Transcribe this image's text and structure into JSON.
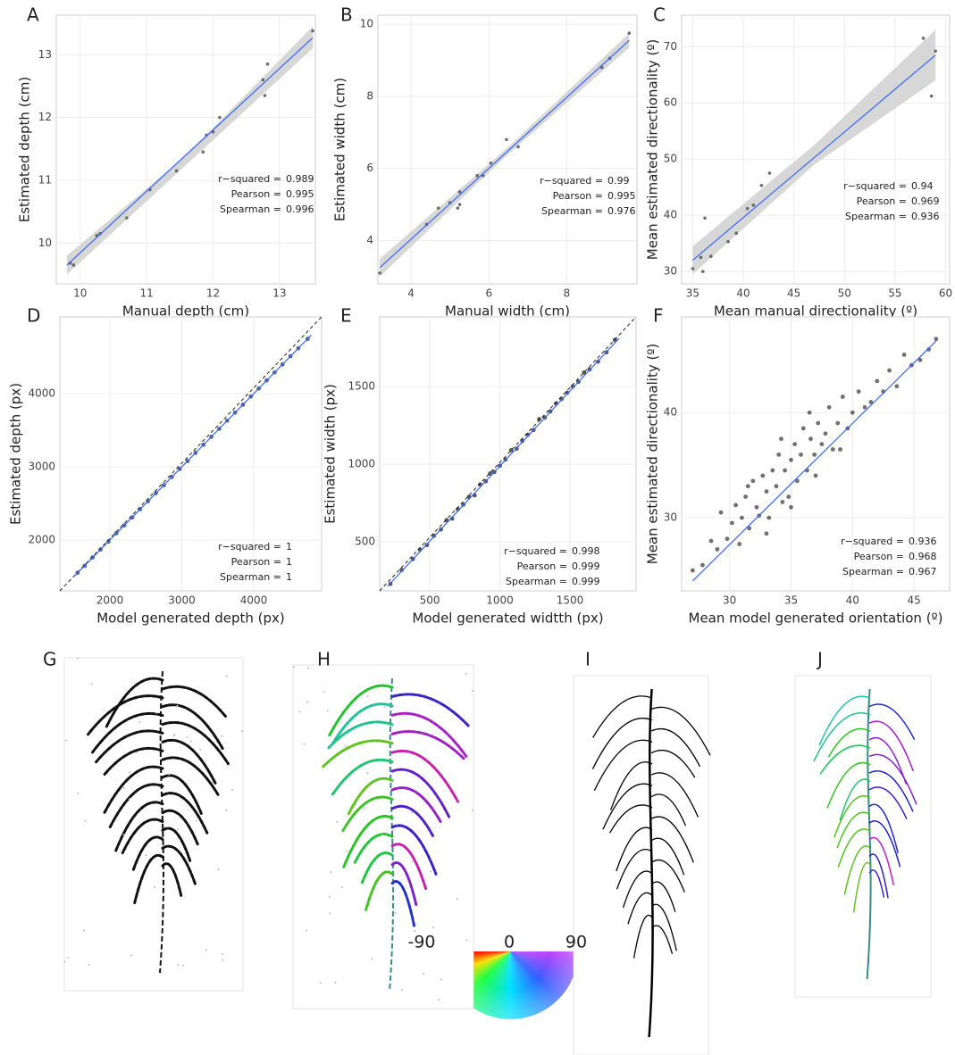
{
  "chart_data": [
    {
      "type": "scatter",
      "panel": "A",
      "x_label": "Manual depth (cm)",
      "y_label": "Estimated depth (cm)",
      "xlim": [
        9.64,
        13.54
      ],
      "ylim": [
        9.35,
        13.63
      ],
      "xticks": [
        10,
        11,
        12,
        13
      ],
      "yticks": [
        10,
        11,
        12,
        13
      ],
      "grid": true,
      "color": "#555555",
      "x": [
        9.85,
        9.9,
        10.25,
        10.3,
        10.7,
        11.05,
        11.45,
        11.85,
        11.9,
        12.0,
        12.1,
        12.75,
        12.78,
        12.82,
        13.5
      ],
      "values": [
        9.68,
        9.65,
        10.12,
        10.15,
        10.4,
        10.85,
        11.15,
        11.45,
        11.72,
        11.77,
        12.0,
        12.6,
        12.35,
        12.85,
        13.38
      ],
      "fit": {
        "color": "#3366ff",
        "x": [
          9.8,
          13.5
        ],
        "values": [
          9.65,
          13.27
        ]
      },
      "ci": {
        "x": [
          9.8,
          11.6,
          13.5
        ],
        "lower": [
          9.5,
          11.25,
          13.1
        ],
        "upper": [
          9.8,
          11.4,
          13.45
        ]
      },
      "stats": [
        {
          "label": "r−squared =",
          "value": 0.989
        },
        {
          "label": "Pearson =",
          "value": 0.995
        },
        {
          "label": "Spearman =",
          "value": 0.996
        }
      ]
    },
    {
      "type": "scatter",
      "panel": "B",
      "x_label": "Manual width (cm)",
      "y_label": "Estimated width (cm)",
      "xlim": [
        3.15,
        9.8
      ],
      "ylim": [
        2.8,
        10.25
      ],
      "xticks": [
        4,
        6,
        8
      ],
      "yticks": [
        4,
        6,
        8,
        10
      ],
      "grid": true,
      "color": "#555555",
      "x": [
        3.2,
        4.4,
        4.7,
        5.0,
        5.2,
        5.25,
        5.25,
        5.7,
        5.85,
        6.05,
        6.45,
        6.75,
        8.9,
        9.1,
        9.6
      ],
      "values": [
        3.1,
        4.45,
        4.9,
        5.05,
        4.9,
        5.0,
        5.35,
        5.8,
        5.8,
        6.15,
        6.8,
        6.6,
        8.8,
        9.05,
        9.75
      ],
      "fit": {
        "color": "#3366ff",
        "x": [
          3.2,
          9.6
        ],
        "values": [
          3.25,
          9.55
        ]
      },
      "ci": {
        "x": [
          3.2,
          6.4,
          9.6
        ],
        "lower": [
          3.0,
          6.3,
          9.35
        ],
        "upper": [
          3.5,
          6.5,
          9.75
        ]
      },
      "stats": [
        {
          "label": "r−squared =",
          "value": 0.99
        },
        {
          "label": "Pearson =",
          "value": 0.995
        },
        {
          "label": "Spearman =",
          "value": 0.976
        }
      ]
    },
    {
      "type": "scatter",
      "panel": "C",
      "x_label": "Mean manual directionality (º)",
      "y_label": "Mean estimated directionality (º)",
      "xlim": [
        33.9,
        60.4
      ],
      "ylim": [
        27.8,
        75.6
      ],
      "xticks": [
        35,
        40,
        45,
        50,
        55,
        60
      ],
      "yticks": [
        30,
        40,
        50,
        60,
        70
      ],
      "grid": true,
      "color": "#555555",
      "x": [
        35.0,
        35.8,
        36.0,
        36.2,
        36.8,
        38.5,
        39.3,
        40.4,
        41.0,
        41.8,
        42.6,
        57.8,
        58.6,
        59.0
      ],
      "values": [
        30.5,
        32.5,
        30.0,
        39.5,
        32.7,
        35.3,
        36.8,
        41.2,
        41.8,
        45.3,
        47.5,
        71.5,
        61.2,
        69.2
      ],
      "fit": {
        "color": "#3366ff",
        "x": [
          35,
          59
        ],
        "values": [
          32,
          68.5
        ]
      },
      "ci": {
        "x": [
          35,
          47,
          59
        ],
        "lower": [
          29.5,
          49,
          64
        ],
        "upper": [
          34.5,
          52.5,
          73
        ]
      },
      "stats": [
        {
          "label": "r−squared =",
          "value": 0.94
        },
        {
          "label": "Pearson =",
          "value": 0.969
        },
        {
          "label": "Spearman =",
          "value": 0.936
        }
      ]
    },
    {
      "type": "scatter",
      "panel": "D",
      "x_label": "Model generated depth (px)",
      "y_label": "Estimated depth (px)",
      "xlim": [
        1304,
        4944
      ],
      "ylim": [
        1305,
        5049
      ],
      "xticks": [
        2000,
        3000,
        4000
      ],
      "yticks": [
        2000,
        3000,
        4000
      ],
      "grid": true,
      "color": "#1b2a4a",
      "identity_line": true,
      "x": [
        1550,
        1650,
        1760,
        1870,
        1980,
        2090,
        2200,
        2310,
        2420,
        2530,
        2640,
        2750,
        2860,
        2970,
        3080,
        3190,
        3300,
        3410,
        3520,
        3630,
        3740,
        3850,
        3960,
        4070,
        4180,
        4290,
        4400,
        4510,
        4620,
        4750
      ],
      "values": [
        1552,
        1648,
        1762,
        1870,
        1978,
        2092,
        2200,
        2308,
        2421,
        2530,
        2641,
        2748,
        2861,
        2970,
        3079,
        3190,
        3302,
        3410,
        3519,
        3631,
        3740,
        3849,
        3961,
        4070,
        4181,
        4290,
        4399,
        4511,
        4620,
        4748
      ],
      "fit": {
        "color": "#3366ff",
        "x": [
          1500,
          4800
        ],
        "values": [
          1500,
          4800
        ]
      },
      "stats": [
        {
          "label": "r−squared =",
          "value": 1
        },
        {
          "label": "Pearson =",
          "value": 1
        },
        {
          "label": "Spearman =",
          "value": 1
        }
      ]
    },
    {
      "type": "scatter",
      "panel": "E",
      "x_label": "Model generated widtth (px)",
      "y_label": "Estimated width (px)",
      "xlim": [
        143,
        1971
      ],
      "ylim": [
        185,
        1948
      ],
      "xticks": [
        500,
        1000,
        1500
      ],
      "yticks": [
        500,
        1000,
        1500
      ],
      "grid": true,
      "color": "#111111",
      "identity_line": true,
      "x": [
        220,
        300,
        380,
        430,
        480,
        530,
        580,
        620,
        660,
        700,
        740,
        780,
        820,
        860,
        900,
        930,
        960,
        1000,
        1040,
        1080,
        1120,
        1160,
        1200,
        1240,
        1280,
        1320,
        1360,
        1400,
        1440,
        1480,
        1520,
        1560,
        1600,
        1640,
        1700,
        1760,
        1820
      ],
      "values": [
        230,
        320,
        390,
        450,
        480,
        540,
        580,
        640,
        650,
        710,
        740,
        790,
        800,
        870,
        890,
        940,
        950,
        990,
        1030,
        1090,
        1100,
        1150,
        1190,
        1220,
        1290,
        1300,
        1340,
        1390,
        1420,
        1460,
        1500,
        1530,
        1590,
        1610,
        1660,
        1720,
        1800
      ],
      "fit": {
        "color": "#3366ff",
        "x": [
          200,
          1850
        ],
        "values": [
          215,
          1810
        ]
      },
      "stats": [
        {
          "label": "r−squared =",
          "value": 0.998
        },
        {
          "label": "Pearson =",
          "value": 0.999
        },
        {
          "label": "Spearman =",
          "value": 0.999
        }
      ]
    },
    {
      "type": "scatter",
      "panel": "F",
      "x_label": "Mean model generated orientation (º)",
      "y_label": "Mean estimated directionality (º)",
      "xlim": [
        26.1,
        47.9
      ],
      "ylim": [
        23.05,
        49.1
      ],
      "xticks": [
        30,
        35,
        40,
        45
      ],
      "yticks": [
        30,
        40
      ],
      "grid": true,
      "color": "#333333",
      "x": [
        27.0,
        27.8,
        28.5,
        29.0,
        29.3,
        29.8,
        30.2,
        30.5,
        30.8,
        31.0,
        31.3,
        31.6,
        31.9,
        32.2,
        32.4,
        32.7,
        33.0,
        33.2,
        33.5,
        33.8,
        34.0,
        34.3,
        34.5,
        34.8,
        35.0,
        35.3,
        35.5,
        35.8,
        36.0,
        36.3,
        36.6,
        36.9,
        37.2,
        37.5,
        37.8,
        38.1,
        38.4,
        38.8,
        39.2,
        39.6,
        40.0,
        40.5,
        41.0,
        41.5,
        42.0,
        42.5,
        43.0,
        43.6,
        44.2,
        44.8,
        45.5,
        46.2,
        46.8,
        31.5,
        33.0,
        35.0,
        37.0,
        39.0,
        34.2,
        36.5
      ],
      "values": [
        25.0,
        25.5,
        27.8,
        27.0,
        30.5,
        28.0,
        29.5,
        31.2,
        27.5,
        30.0,
        32.0,
        29.0,
        33.5,
        31.0,
        30.2,
        34.0,
        32.5,
        30.0,
        34.5,
        33.0,
        36.0,
        31.5,
        34.5,
        32.0,
        35.5,
        37.0,
        33.5,
        36.0,
        38.5,
        34.5,
        37.5,
        36.0,
        39.0,
        37.0,
        38.0,
        40.5,
        36.5,
        39.0,
        41.5,
        38.5,
        40.0,
        42.0,
        40.5,
        41.0,
        43.0,
        42.0,
        44.0,
        42.5,
        45.5,
        44.5,
        45.0,
        46.0,
        47.0,
        33.0,
        28.5,
        31.0,
        34.0,
        36.5,
        37.5,
        40.0
      ],
      "fit": {
        "color": "#3366ff",
        "x": [
          27,
          46.8
        ],
        "values": [
          24,
          46.8
        ]
      },
      "stats": [
        {
          "label": "r−squared =",
          "value": 0.936
        },
        {
          "label": "Pearson =",
          "value": 0.968
        },
        {
          "label": "Spearman =",
          "value": 0.967
        }
      ]
    }
  ],
  "images": [
    {
      "panel": "G"
    },
    {
      "panel": "H"
    },
    {
      "panel": "I"
    },
    {
      "panel": "J"
    }
  ],
  "color_wheel": {
    "labels": [
      "-90",
      "0",
      "90"
    ]
  }
}
